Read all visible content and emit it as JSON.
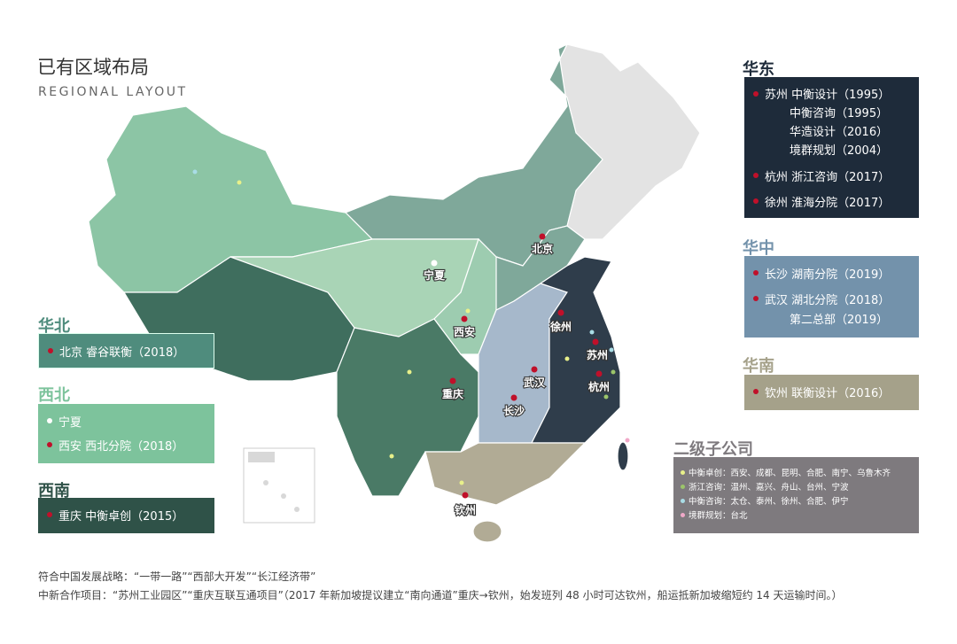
{
  "title": "已有区域布局",
  "subtitle": "REGIONAL LAYOUT",
  "colors": {
    "huabei": "#4f8c7d",
    "xibei": "#7dc39c",
    "xinan": "#2f5248",
    "huadong": "#1e2b3a",
    "huazhong": "#7392ab",
    "huanan": "#a5a18a",
    "subsidiary": "#7e7a7e",
    "city_dot": "#c0102a"
  },
  "regions": {
    "huabei": {
      "heading": "华北",
      "items": [
        {
          "city": "北京",
          "name": "睿谷联衡（2018）"
        }
      ]
    },
    "xibei": {
      "heading": "西北",
      "items": [
        {
          "city": "宁夏",
          "name": ""
        },
        {
          "city": "西安",
          "name": "西北分院（2018）"
        }
      ]
    },
    "xinan": {
      "heading": "西南",
      "items": [
        {
          "city": "重庆",
          "name": "中衡卓创（2015）"
        }
      ]
    },
    "huadong": {
      "heading": "华东",
      "items": [
        {
          "city": "苏州",
          "name": "中衡设计（1995）"
        },
        {
          "city": "",
          "name": "中衡咨询（1995）"
        },
        {
          "city": "",
          "name": "华造设计（2016）"
        },
        {
          "city": "",
          "name": "境群规划（2004）"
        },
        {
          "city": "杭州",
          "name": "浙江咨询（2017）"
        },
        {
          "city": "徐州",
          "name": "淮海分院（2017）"
        }
      ]
    },
    "huazhong": {
      "heading": "华中",
      "items": [
        {
          "city": "长沙",
          "name": "湖南分院（2019）"
        },
        {
          "city": "武汉",
          "name": "湖北分院（2018）"
        },
        {
          "city": "",
          "name": "第二总部（2019）"
        }
      ]
    },
    "huanan": {
      "heading": "华南",
      "items": [
        {
          "city": "钦州",
          "name": "联衡设计（2016）"
        }
      ]
    }
  },
  "subsidiaries": {
    "heading": "二级子公司",
    "items": [
      {
        "text": "中衡卓创：西安、成都、昆明、合肥、南宁、乌鲁木齐",
        "color": "#e8f08a"
      },
      {
        "text": "浙江咨询：温州、嘉兴、舟山、台州、宁波",
        "color": "#9cc56a"
      },
      {
        "text": "中衡咨询：太仓、泰州、徐州、合肥、伊宁",
        "color": "#a9dde6"
      },
      {
        "text": "境群规划：台北",
        "color": "#f0a8c8"
      }
    ]
  },
  "map_labels": [
    "北京",
    "宁夏",
    "西安",
    "徐州",
    "苏州",
    "武汉",
    "杭州",
    "重庆",
    "长沙",
    "钦州"
  ],
  "footer": [
    "符合中国发展战略：“一带一路”“西部大开发”“长江经济带”",
    "中新合作项目：“苏州工业园区”“重庆互联互通项目”（2017 年新加坡提议建立“南向通道”重庆→钦州，始发班列 48 小时可达钦州，船运抵新加坡缩短约 14 天运输时间。）"
  ]
}
